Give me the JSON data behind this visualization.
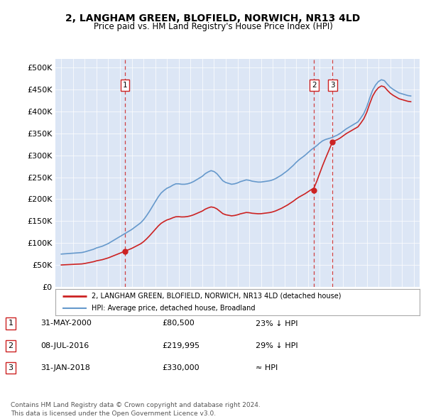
{
  "title": "2, LANGHAM GREEN, BLOFIELD, NORWICH, NR13 4LD",
  "subtitle": "Price paid vs. HM Land Registry's House Price Index (HPI)",
  "plot_bg_color": "#dce6f5",
  "hpi_color": "#6699cc",
  "price_color": "#cc2222",
  "vline_color": "#cc2222",
  "transactions": [
    {
      "label": "1",
      "date_num": 2000.42,
      "price": 80500
    },
    {
      "label": "2",
      "date_num": 2016.52,
      "price": 219995
    },
    {
      "label": "3",
      "date_num": 2018.08,
      "price": 330000
    }
  ],
  "legend_label_price": "2, LANGHAM GREEN, BLOFIELD, NORWICH, NR13 4LD (detached house)",
  "legend_label_hpi": "HPI: Average price, detached house, Broadland",
  "table_rows": [
    {
      "num": "1",
      "date": "31-MAY-2000",
      "price": "£80,500",
      "note": "23% ↓ HPI"
    },
    {
      "num": "2",
      "date": "08-JUL-2016",
      "price": "£219,995",
      "note": "29% ↓ HPI"
    },
    {
      "num": "3",
      "date": "31-JAN-2018",
      "price": "£330,000",
      "note": "≈ HPI"
    }
  ],
  "footer": "Contains HM Land Registry data © Crown copyright and database right 2024.\nThis data is licensed under the Open Government Licence v3.0.",
  "ylim": [
    0,
    520000
  ],
  "yticks": [
    0,
    50000,
    100000,
    150000,
    200000,
    250000,
    300000,
    350000,
    400000,
    450000,
    500000
  ],
  "xlim_start": 1994.5,
  "xlim_end": 2025.5
}
